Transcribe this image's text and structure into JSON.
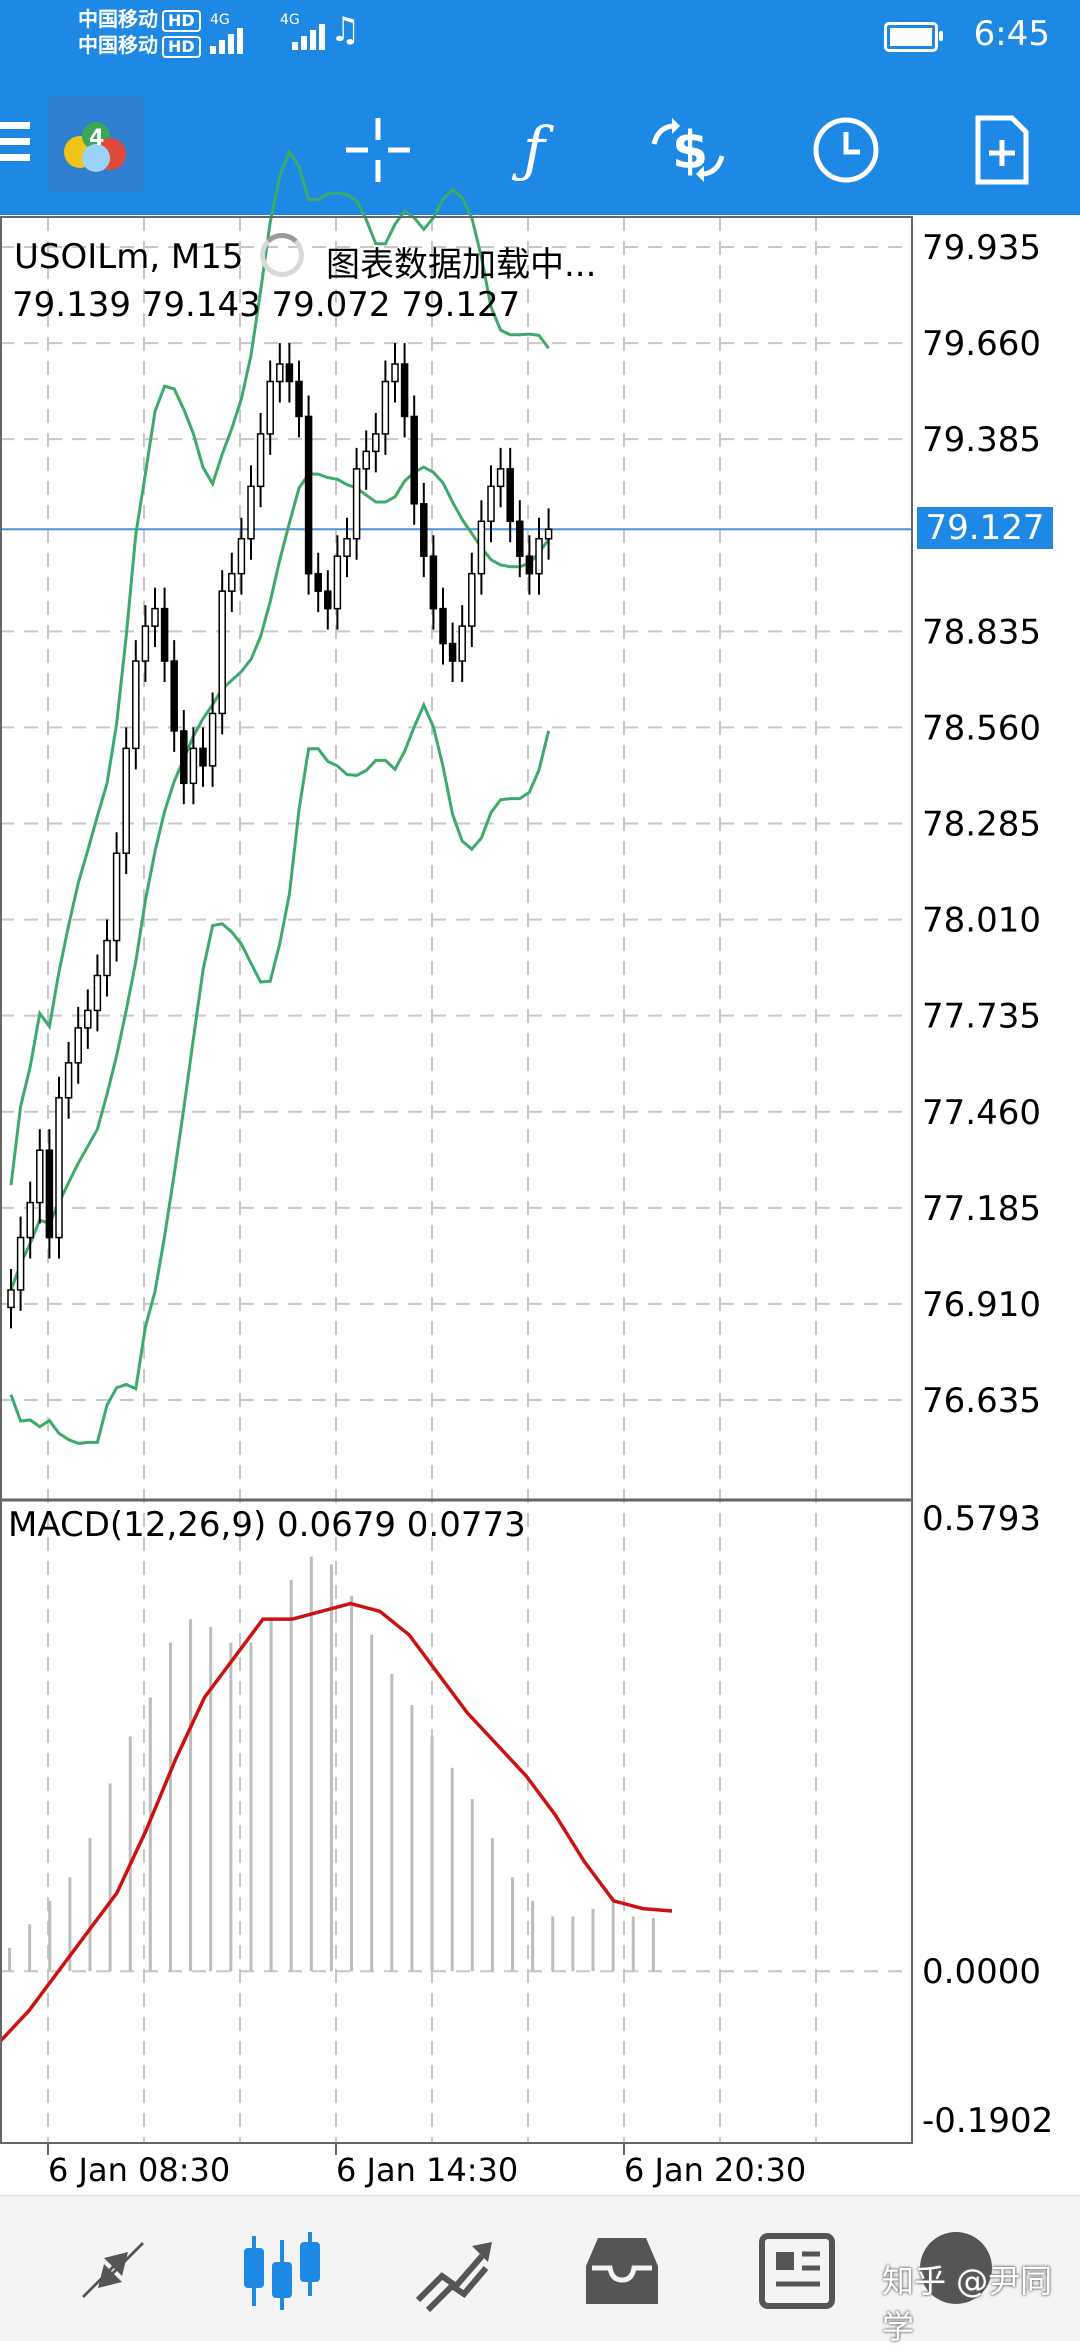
{
  "status_bar": {
    "carrier_line1": "中国移动",
    "carrier_line2": "中国移动",
    "hd": "HD",
    "network": "4G",
    "time": "6:45"
  },
  "toolbar": {
    "menu_icon": "hamburger-icon",
    "logo_icon": "metatrader-4-logo",
    "crosshair_icon": "crosshair-icon",
    "indicators_icon": "function-f-icon",
    "trade_icon": "dollar-swap-icon",
    "timeframe_icon": "clock-icon",
    "new_order_icon": "document-add-icon"
  },
  "chart": {
    "symbol_timeframe": "USOILm, M15",
    "loading_text": "图表数据加载中...",
    "ohlc": "79.139 79.143 79.072 79.127",
    "current_price": "79.127",
    "price_ticks": [
      "79.935",
      "79.660",
      "79.385",
      "78.835",
      "78.560",
      "78.285",
      "78.010",
      "77.735",
      "77.460",
      "77.185",
      "76.910",
      "76.635"
    ],
    "macd_label": "MACD(12,26,9) 0.0679 0.0773",
    "macd_ticks": [
      "0.5793",
      "0.0000",
      "-0.1902"
    ],
    "time_labels": [
      "6 Jan 08:30",
      "6 Jan 14:30",
      "6 Jan 20:30"
    ],
    "colors": {
      "bollinger": "#3daa6a",
      "signal_line": "#cc1111",
      "current_price_line": "#4a90d9",
      "grid": "#c8c8c8"
    }
  },
  "bottom_nav": {
    "items": [
      {
        "icon": "quotes-arrows-icon"
      },
      {
        "icon": "chart-candles-icon"
      },
      {
        "icon": "trade-trend-icon"
      },
      {
        "icon": "history-inbox-icon"
      },
      {
        "icon": "news-icon"
      }
    ],
    "watermark": "知乎 @尹同学"
  },
  "chart_data": {
    "type": "candlestick",
    "y_range": [
      76.5,
      80.1
    ],
    "macd_y_range": [
      -0.1902,
      0.5793
    ],
    "candles_close_approx": [
      76.95,
      77.1,
      77.2,
      77.35,
      77.1,
      77.5,
      77.6,
      77.7,
      77.75,
      77.85,
      77.95,
      78.2,
      78.5,
      78.75,
      78.85,
      78.9,
      78.75,
      78.55,
      78.4,
      78.5,
      78.45,
      78.6,
      78.95,
      79.0,
      79.1,
      79.25,
      79.4,
      79.55,
      79.6,
      79.55,
      79.45,
      79.0,
      78.95,
      78.9,
      79.05,
      79.1,
      79.3,
      79.35,
      79.4,
      79.55,
      79.6,
      79.45,
      79.2,
      79.05,
      78.9,
      78.8,
      78.75,
      78.85,
      79.0,
      79.15,
      79.25,
      79.3,
      79.15,
      79.05,
      79.0,
      79.1,
      79.127
    ],
    "signal_line_approx": [
      -0.09,
      -0.05,
      0.0,
      0.05,
      0.1,
      0.18,
      0.27,
      0.35,
      0.4,
      0.45,
      0.45,
      0.46,
      0.47,
      0.46,
      0.43,
      0.38,
      0.33,
      0.29,
      0.25,
      0.2,
      0.14,
      0.09,
      0.08,
      0.077
    ],
    "macd_histogram_approx": [
      0.03,
      0.06,
      0.09,
      0.12,
      0.17,
      0.24,
      0.3,
      0.35,
      0.42,
      0.45,
      0.44,
      0.42,
      0.42,
      0.45,
      0.5,
      0.53,
      0.52,
      0.48,
      0.43,
      0.38,
      0.34,
      0.3,
      0.26,
      0.22,
      0.17,
      0.12,
      0.09,
      0.07,
      0.07,
      0.08,
      0.09,
      0.07,
      0.068
    ]
  }
}
